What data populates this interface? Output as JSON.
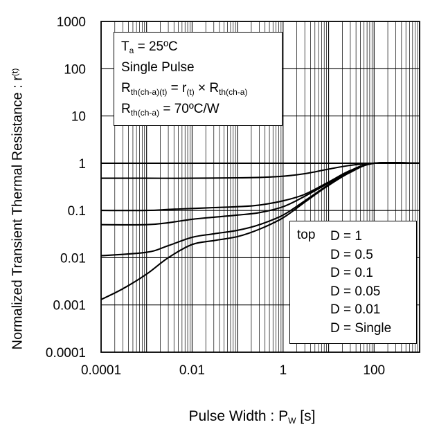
{
  "chart_data": {
    "type": "line",
    "xscale": "log",
    "yscale": "log",
    "xlim": [
      0.0001,
      1000
    ],
    "ylim": [
      0.0001,
      1000
    ],
    "x_ticks": [
      "0.0001",
      "0.01",
      "1",
      "100"
    ],
    "y_ticks": [
      "1000",
      "100",
      "10",
      "1",
      "0.1",
      "0.01",
      "0.001",
      "0.0001"
    ],
    "xlabel": {
      "main": "Pulse Width : P",
      "sub": "W",
      "unit": " [s]"
    },
    "ylabel": {
      "main": "Normalized Transient Thermal Resistance : r",
      "sub": "(t)"
    },
    "grid": true,
    "conditions": {
      "line1": {
        "a": "T",
        "sub": "a",
        "b": " = 25ºC"
      },
      "line2": "Single Pulse",
      "line3": {
        "a": "R",
        "sub": "th(ch-a)(t)",
        "b": " = r",
        "sub2": "(t)",
        "c": " × R",
        "sub3": "th(ch-a)"
      },
      "line4": {
        "a": "R",
        "sub": "th(ch-a)",
        "b": " = 70ºC/W"
      }
    },
    "legend": {
      "prefix": "top",
      "position": "bottom-right",
      "items": [
        "D = 1",
        "D = 0.5",
        "D = 0.1",
        "D = 0.05",
        "D = 0.01",
        "D = Single"
      ]
    },
    "series": [
      {
        "name": "D = 1",
        "x": [
          0.0001,
          1,
          100,
          1000
        ],
        "y": [
          1,
          1,
          1,
          1
        ]
      },
      {
        "name": "D = 0.5",
        "x": [
          0.0001,
          0.001,
          0.01,
          0.1,
          0.3,
          1,
          3,
          10,
          30,
          100,
          1000
        ],
        "y": [
          0.48,
          0.48,
          0.48,
          0.49,
          0.5,
          0.53,
          0.6,
          0.75,
          0.9,
          1,
          1
        ]
      },
      {
        "name": "D = 0.1",
        "x": [
          0.0001,
          0.001,
          0.003,
          0.01,
          0.03,
          0.1,
          0.3,
          1,
          3,
          10,
          30,
          100,
          1000
        ],
        "y": [
          0.1,
          0.1,
          0.105,
          0.11,
          0.115,
          0.12,
          0.13,
          0.16,
          0.22,
          0.4,
          0.7,
          1,
          1
        ]
      },
      {
        "name": "D = 0.05",
        "x": [
          0.0001,
          0.001,
          0.003,
          0.01,
          0.03,
          0.1,
          0.3,
          1,
          3,
          10,
          30,
          100,
          1000
        ],
        "y": [
          0.05,
          0.05,
          0.055,
          0.065,
          0.072,
          0.08,
          0.09,
          0.12,
          0.2,
          0.38,
          0.68,
          1,
          1
        ]
      },
      {
        "name": "D = 0.01",
        "x": [
          0.0001,
          0.001,
          0.003,
          0.01,
          0.03,
          0.1,
          0.3,
          1,
          3,
          10,
          30,
          100,
          1000
        ],
        "y": [
          0.011,
          0.013,
          0.018,
          0.027,
          0.032,
          0.038,
          0.05,
          0.08,
          0.16,
          0.35,
          0.65,
          1,
          1
        ]
      },
      {
        "name": "D = Single",
        "x": [
          0.0001,
          0.0003,
          0.001,
          0.003,
          0.01,
          0.03,
          0.1,
          0.3,
          1,
          3,
          10,
          30,
          100,
          1000
        ],
        "y": [
          0.0013,
          0.0022,
          0.0045,
          0.01,
          0.019,
          0.023,
          0.028,
          0.04,
          0.07,
          0.15,
          0.34,
          0.64,
          1,
          1
        ]
      }
    ]
  }
}
